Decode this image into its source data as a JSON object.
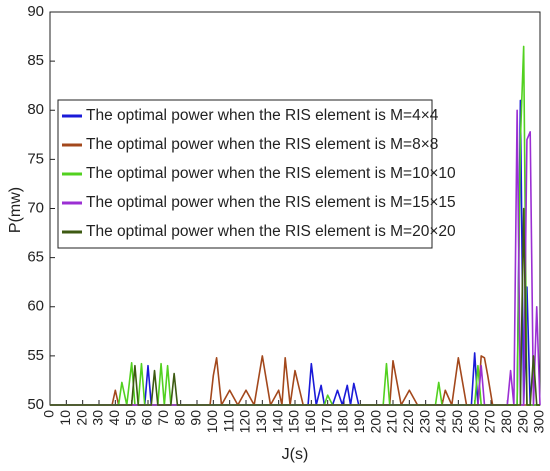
{
  "chart_data": {
    "type": "line",
    "xlabel": "J(s)",
    "ylabel": "P(mw)",
    "x": [
      0,
      38,
      40,
      42,
      44,
      47,
      50,
      52,
      54,
      56,
      58,
      60,
      62,
      64,
      66,
      68,
      70,
      72,
      74,
      76,
      78,
      98,
      100,
      102,
      105,
      110,
      115,
      120,
      125,
      130,
      135,
      140,
      142,
      144,
      147,
      150,
      155,
      158,
      160,
      163,
      166,
      168,
      170,
      173,
      176,
      179,
      182,
      184,
      186,
      189,
      204,
      206,
      208,
      210,
      215,
      220,
      225,
      236,
      238,
      240,
      242,
      246,
      250,
      255,
      258,
      260,
      262,
      264,
      266,
      268,
      271,
      280,
      282,
      284,
      286,
      288,
      290,
      292,
      294,
      296,
      298,
      300
    ],
    "series": [
      {
        "name": "The optimal power when the RIS element is M=4×4",
        "color": "#1a1ad8",
        "values": [
          50,
          50,
          50,
          50,
          50,
          50,
          50,
          50,
          50,
          50,
          50,
          54,
          50,
          50,
          50,
          50,
          50,
          50,
          50,
          50,
          50,
          50,
          50,
          50,
          50,
          50,
          50,
          50,
          50,
          50,
          50,
          50,
          50,
          50,
          50,
          50,
          50,
          50,
          54.2,
          50,
          52,
          50,
          50,
          50,
          51.5,
          50,
          52,
          50,
          52.2,
          50,
          50,
          50,
          50,
          50,
          50,
          50,
          50,
          50,
          50,
          50,
          50,
          50,
          50,
          50,
          50,
          55.3,
          50,
          50,
          50,
          50,
          50,
          50,
          50,
          50,
          50,
          81,
          50,
          62,
          50,
          50,
          50,
          50
        ]
      },
      {
        "name": "The optimal power when the RIS element is M=8×8",
        "color": "#a3481c",
        "values": [
          50,
          50,
          51.5,
          50,
          50,
          50,
          50,
          50,
          50,
          50,
          50,
          50,
          50,
          50,
          50,
          50,
          50,
          50,
          50,
          50,
          50,
          50,
          53,
          54.8,
          50,
          51.5,
          50,
          51.5,
          50,
          55,
          50,
          51.5,
          50,
          54.8,
          50,
          53.5,
          50,
          50,
          50,
          50,
          50,
          50,
          50,
          50,
          50,
          50,
          50,
          50,
          50,
          50,
          50,
          50,
          50,
          54.5,
          50,
          51.5,
          50,
          50,
          50,
          50,
          51.5,
          50,
          54.8,
          50,
          50,
          50,
          50,
          55,
          54.8,
          53,
          50,
          50,
          50,
          50,
          50,
          50,
          50,
          50,
          50,
          50,
          50,
          50
        ]
      },
      {
        "name": "The optimal power when the RIS element is M=10×10",
        "color": "#52d11f",
        "values": [
          50,
          50,
          50,
          50,
          52.3,
          50,
          54.3,
          50,
          50,
          54.2,
          50,
          50,
          50,
          50,
          50,
          54.2,
          50,
          54,
          50,
          50,
          50,
          50,
          50,
          50,
          50,
          50,
          50,
          50,
          50,
          50,
          50,
          50,
          50,
          50,
          50,
          50,
          50,
          50,
          50,
          50,
          50,
          50,
          51,
          50,
          50,
          50,
          50,
          50,
          50,
          50,
          50,
          54.2,
          50,
          50,
          50,
          50,
          50,
          50,
          52.3,
          50,
          50,
          50,
          50,
          50,
          50,
          50,
          54,
          50,
          50,
          50,
          50,
          50,
          50,
          50,
          50,
          77,
          86.5,
          50,
          50,
          50,
          50,
          50
        ]
      },
      {
        "name": "The optimal power when the RIS element is M=15×15",
        "color": "#9b2fd3",
        "values": [
          50,
          50,
          50,
          50,
          50,
          50,
          50,
          50,
          50,
          50,
          50,
          50,
          50,
          50,
          50,
          50,
          50,
          50,
          50,
          50,
          50,
          50,
          50,
          50,
          50,
          50,
          50,
          50,
          50,
          50,
          50,
          50,
          50,
          50,
          50,
          50,
          50,
          50,
          50,
          50,
          50,
          50,
          50,
          50,
          50,
          50,
          50,
          50,
          50,
          50,
          50,
          50,
          50,
          50,
          50,
          50,
          50,
          50,
          50,
          50,
          50,
          50,
          50,
          50,
          50,
          50,
          50,
          54,
          50,
          50,
          50,
          50,
          53.5,
          50,
          80,
          50,
          50,
          77,
          77.8,
          50,
          60,
          50
        ]
      },
      {
        "name": "The optimal power when the RIS element is M=20×20",
        "color": "#3d5a12",
        "values": [
          50,
          50,
          50,
          50,
          50,
          50,
          50,
          54,
          50,
          50,
          50,
          50,
          50,
          53.5,
          50,
          50,
          50,
          50,
          50,
          53.2,
          50,
          50,
          50,
          50,
          50,
          50,
          50,
          50,
          50,
          50,
          50,
          50,
          50,
          50,
          50,
          50,
          50,
          50,
          50,
          50,
          50,
          50,
          50,
          50,
          50,
          50,
          50,
          50,
          50,
          50,
          50,
          50,
          50,
          50,
          50,
          50,
          50,
          50,
          50,
          50,
          50,
          50,
          50,
          50,
          50,
          50,
          50,
          50,
          50,
          50,
          50,
          50,
          50,
          50,
          50,
          50,
          70,
          50,
          50,
          55,
          50,
          50
        ]
      }
    ],
    "xlim": [
      0,
      300
    ],
    "xticks": [
      0,
      10,
      20,
      30,
      40,
      50,
      60,
      70,
      80,
      90,
      100,
      110,
      120,
      130,
      140,
      150,
      160,
      170,
      180,
      190,
      200,
      210,
      220,
      230,
      240,
      250,
      260,
      270,
      280,
      290,
      300
    ],
    "ylim": [
      50,
      90
    ],
    "yticks": [
      50,
      55,
      60,
      65,
      70,
      75,
      80,
      85,
      90
    ],
    "grid": false,
    "legend": "upper left"
  }
}
